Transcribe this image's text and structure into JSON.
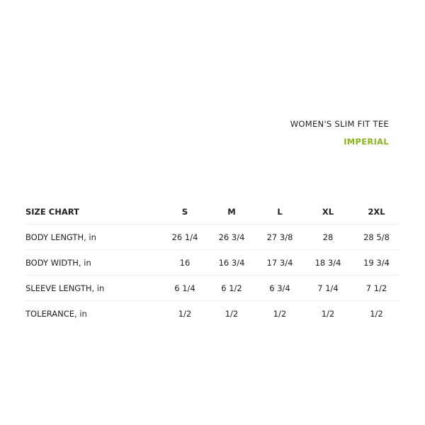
{
  "title": "WOMEN'S SLIM FIT TEE",
  "unit": "IMPERIAL",
  "accent_color": "#8cb21f",
  "table": {
    "header": [
      "SIZE CHART",
      "S",
      "M",
      "L",
      "XL",
      "2XL"
    ],
    "rows": [
      [
        "BODY LENGTH, in",
        "26 1/4",
        "26 3/4",
        "27 3/8",
        "28",
        "28 5/8"
      ],
      [
        "BODY WIDTH, in",
        "16",
        "16 3/4",
        "17 3/4",
        "18 3/4",
        "19 3/4"
      ],
      [
        "SLEEVE LENGTH, in",
        "6 1/4",
        "6 1/2",
        "6 3/4",
        "7 1/4",
        "7 1/2"
      ],
      [
        "TOLERANCE, in",
        "1/2",
        "1/2",
        "1/2",
        "1/2",
        "1/2"
      ]
    ]
  }
}
